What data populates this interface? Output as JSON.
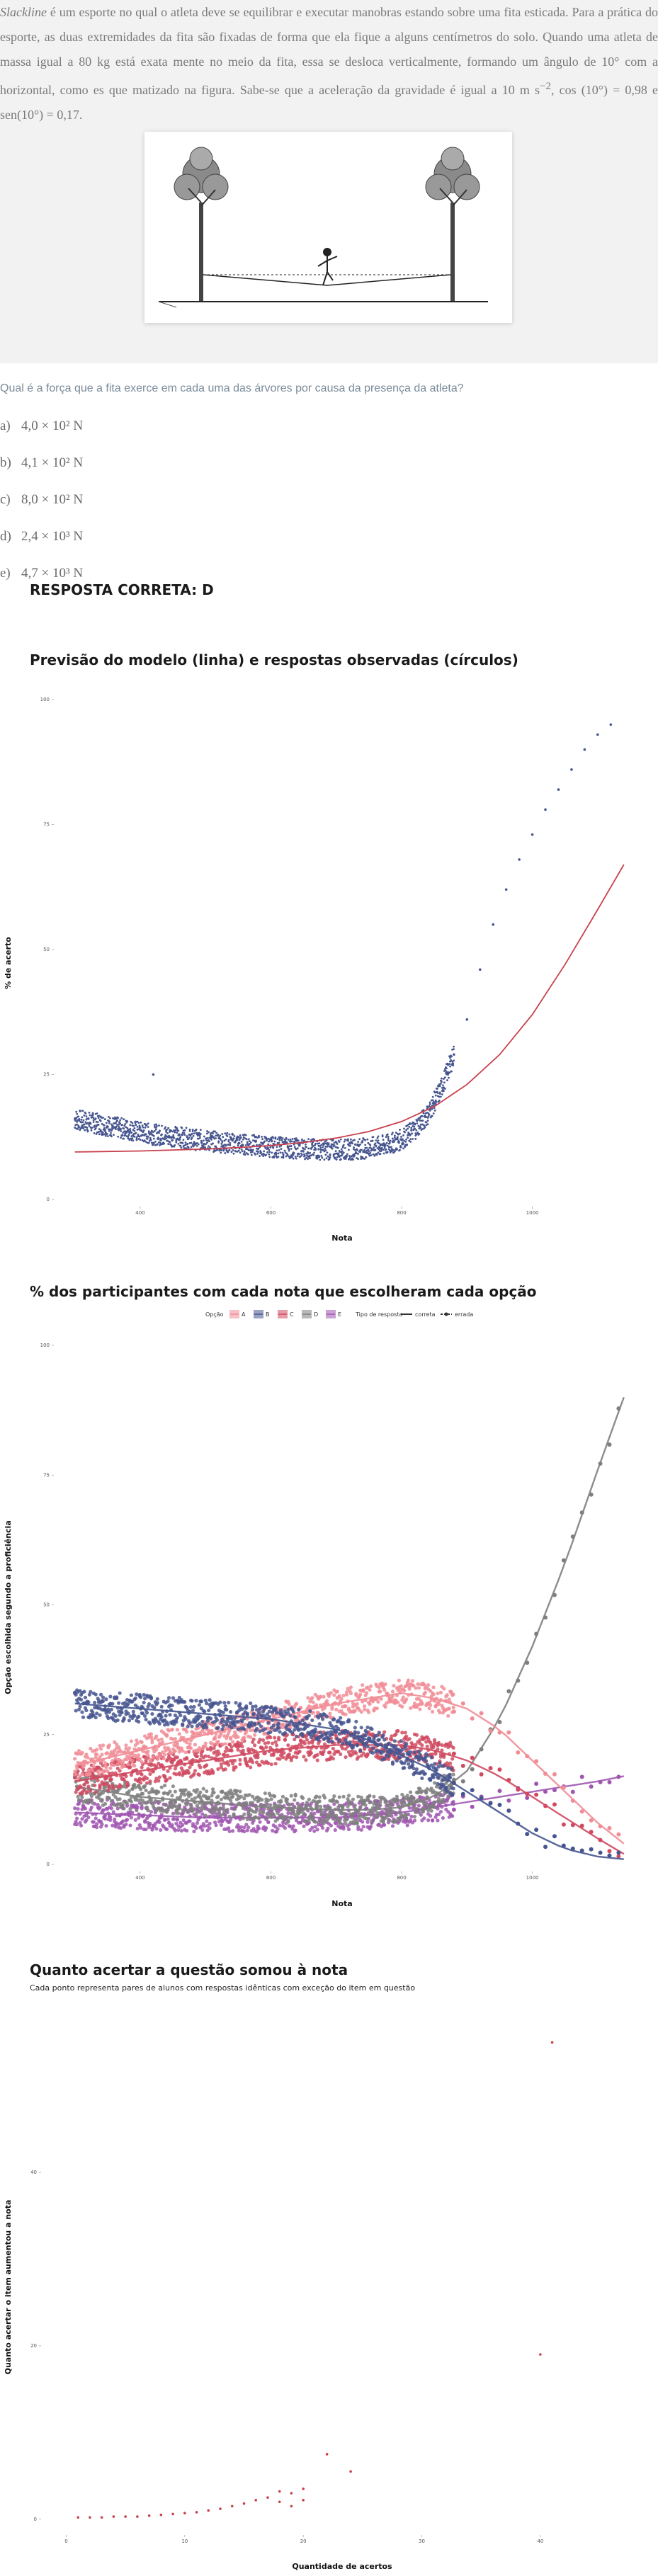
{
  "question_text": {
    "intro_em": "Slackline",
    "intro": " é um esporte no qual o atleta deve se equilibrar e executar manobras estando sobre uma fita esticada. Para a prática do esporte, as duas extremidades da fita são fixadas de forma que ela fique a alguns centímetros do solo. Quando uma atleta de massa igual a 80 kg está exata mente no meio da fita, essa se desloca verticalmente, formando um ângulo de 10° com a horizontal, como es que matizado na figura. Sabe-se que a aceleração da gravidade é igual a 10 m s",
    "sup": "−2",
    "end": ", cos (10°) = 0,98 e sen(10°) = 0,17.",
    "figure_label": "slackline"
  },
  "question": "Qual é a força que a fita exerce em cada uma das árvores por causa da presença da atleta?",
  "options": [
    {
      "letter": "a)",
      "text": "4,0 × 10² N"
    },
    {
      "letter": "b)",
      "text": "4,1 × 10² N"
    },
    {
      "letter": "c)",
      "text": "8,0 × 10² N"
    },
    {
      "letter": "d)",
      "text": "2,4 × 10³ N"
    },
    {
      "letter": "e)",
      "text": "4,7 × 10³ N"
    }
  ],
  "answer": "RESPOSTA CORRETA: D",
  "colors": {
    "navy": "#46558f",
    "red": "#c8414e",
    "pink": "#f18d96",
    "rose": "#d04a60",
    "gray": "#7f7f7f",
    "purple": "#a056b0",
    "line": "#c8414e",
    "dark": "#555555"
  },
  "chart_data": [
    {
      "type": "scatter",
      "title": "Previsão do modelo (linha) e respostas observadas (círculos)",
      "xlabel": "Nota",
      "ylabel": "% de acerto",
      "xticks": [
        "400",
        "600",
        "800",
        "1000"
      ],
      "yticks": [
        "0",
        "25",
        "50",
        "75",
        "100"
      ],
      "xlim": [
        270,
        1150
      ],
      "ylim": [
        0,
        100
      ],
      "series": [
        {
          "kind": "points",
          "color": "navy",
          "description": "observed",
          "x": [
            300,
            320,
            340,
            360,
            380,
            400,
            420,
            440,
            460,
            480,
            500,
            520,
            540,
            560,
            580,
            600,
            620,
            640,
            660,
            680,
            700,
            720,
            740,
            760,
            780,
            800,
            820,
            840,
            860,
            880,
            900,
            920,
            940,
            960,
            980,
            1000,
            1020,
            1040,
            1060,
            1080,
            1100,
            1120
          ],
          "y": [
            16,
            15.5,
            15,
            14.5,
            14,
            13.5,
            13,
            12.8,
            12.5,
            12,
            11.8,
            11.5,
            11.2,
            11,
            10.8,
            10.5,
            10.4,
            10.2,
            10.1,
            10,
            10,
            10,
            10.2,
            10.5,
            11,
            12,
            14,
            17,
            22,
            29,
            36,
            46,
            55,
            62,
            68,
            73,
            78,
            82,
            86,
            90,
            93,
            95
          ]
        },
        {
          "kind": "line",
          "color": "line",
          "description": "model",
          "x": [
            300,
            350,
            400,
            450,
            500,
            550,
            600,
            650,
            700,
            750,
            800,
            850,
            900,
            950,
            1000,
            1050,
            1100,
            1140
          ],
          "y": [
            9.5,
            9.6,
            9.7,
            9.9,
            10.1,
            10.4,
            10.8,
            11.4,
            12.3,
            13.6,
            15.6,
            18.6,
            23,
            29,
            37,
            47,
            58,
            67
          ]
        }
      ]
    },
    {
      "type": "scatter",
      "title": "% dos participantes com cada nota que escolheram cada opção",
      "xlabel": "Nota",
      "ylabel": "Opção escolhida segundo a proficiência",
      "legend_opcao_title": "Opção",
      "legend_options": [
        "A",
        "B",
        "C",
        "D",
        "E"
      ],
      "legend_tipo_title": "Tipo de resposta",
      "legend_tipos": [
        "correta",
        "errada"
      ],
      "xticks": [
        "400",
        "600",
        "800",
        "1000"
      ],
      "yticks": [
        "0",
        "25",
        "50",
        "75",
        "100"
      ],
      "xlim": [
        270,
        1150
      ],
      "ylim": [
        0,
        100
      ],
      "series": [
        {
          "name": "A",
          "color": "pink",
          "x": [
            300,
            400,
            500,
            600,
            700,
            750,
            800,
            850,
            900,
            950,
            1000,
            1050,
            1100,
            1140
          ],
          "y": [
            19,
            22,
            25,
            28,
            31,
            32,
            33,
            32,
            30,
            26,
            20,
            14,
            8,
            4
          ]
        },
        {
          "name": "B",
          "color": "navy",
          "x": [
            300,
            400,
            500,
            600,
            700,
            750,
            800,
            850,
            900,
            950,
            1000,
            1050,
            1100,
            1140
          ],
          "y": [
            31,
            30,
            29,
            28,
            26,
            24,
            21,
            18,
            14,
            10,
            6,
            3,
            1.5,
            1
          ]
        },
        {
          "name": "C",
          "color": "rose",
          "x": [
            300,
            400,
            500,
            600,
            700,
            750,
            800,
            850,
            900,
            950,
            1000,
            1050,
            1100,
            1140
          ],
          "y": [
            16,
            18,
            20,
            22,
            23,
            23,
            23,
            22,
            20,
            17,
            13,
            9,
            5,
            2
          ]
        },
        {
          "name": "D",
          "color": "gray",
          "x": [
            300,
            400,
            500,
            600,
            700,
            750,
            800,
            850,
            900,
            950,
            1000,
            1050,
            1100,
            1140
          ],
          "y": [
            15,
            13,
            12,
            11,
            10.5,
            10.5,
            11,
            13,
            18,
            28,
            42,
            58,
            76,
            90
          ]
        },
        {
          "name": "E",
          "color": "purple",
          "x": [
            300,
            400,
            500,
            600,
            700,
            750,
            800,
            850,
            900,
            950,
            1000,
            1050,
            1100,
            1140
          ],
          "y": [
            10,
            9.5,
            9,
            9,
            9,
            9.5,
            10,
            11,
            12,
            13,
            14,
            15,
            16,
            17
          ]
        }
      ]
    },
    {
      "type": "scatter",
      "title": "Quanto acertar a questão somou à nota",
      "subtitle": "Cada ponto representa pares de alunos com respostas idênticas com exceção do item em questão",
      "xlabel": "Quantidade de acertos",
      "ylabel": "Quanto acertar o item aumentou a nota",
      "xticks": [
        "0",
        "10",
        "20",
        "30",
        "40"
      ],
      "yticks": [
        "0",
        "20",
        "40"
      ],
      "xlim": [
        -2,
        47
      ],
      "ylim": [
        -1,
        57
      ],
      "series": [
        {
          "color": "red",
          "x": [
            1,
            2,
            3,
            4,
            5,
            6,
            7,
            8,
            9,
            10,
            11,
            12,
            13,
            14,
            15,
            16,
            17,
            18,
            18,
            19,
            19,
            20,
            20,
            22,
            24,
            40,
            41
          ],
          "y": [
            0.2,
            0.2,
            0.2,
            0.3,
            0.3,
            0.3,
            0.4,
            0.5,
            0.6,
            0.7,
            0.8,
            1.0,
            1.2,
            1.5,
            1.8,
            2.2,
            2.5,
            3.2,
            2.0,
            3.0,
            1.5,
            3.5,
            2.2,
            7.5,
            5.5,
            19,
            55
          ]
        }
      ]
    }
  ]
}
